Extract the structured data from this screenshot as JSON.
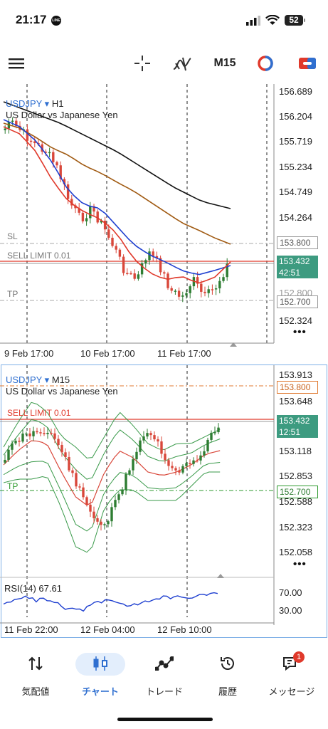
{
  "status": {
    "time": "21:17",
    "line_badge": "LINE",
    "battery": "52"
  },
  "toolbar": {
    "timeframe": "M15",
    "icons": [
      "menu-icon",
      "crosshair-icon",
      "indicator-icon",
      "timeframe-m15",
      "color-theme-icon",
      "trade-icon"
    ]
  },
  "h1_chart": {
    "symbol": "USDJPY",
    "timeframe": "H1",
    "description": "US Dollar vs Japanese Yen",
    "price_labels": [
      "156.689",
      "156.204",
      "155.719",
      "155.234",
      "154.749",
      "154.264",
      "153.800",
      "153.432",
      "42:51",
      "152.800",
      "152.700",
      "152.324"
    ],
    "levels": {
      "sl": "SL",
      "sell_limit": "SELL LIMIT 0.01",
      "tp": "TP"
    },
    "tags": {
      "sl": "153.800",
      "bid": "153.432",
      "countdown": "42:51",
      "tp": "152.700"
    },
    "time_labels": [
      "9 Feb 17:00",
      "10 Feb 17:00",
      "11 Feb 17:00"
    ]
  },
  "m15_chart": {
    "symbol": "USDJPY",
    "timeframe": "M15",
    "description": "US Dollar vs Japanese Yen",
    "price_labels": [
      "153.913",
      "153.800",
      "153.648",
      "153.432",
      "12:51",
      "153.118",
      "152.853",
      "152.700",
      "152.588",
      "152.323",
      "152.058"
    ],
    "levels": {
      "sell_limit": "SELL LIMIT 0.01",
      "tp": "TP"
    },
    "tags": {
      "sl": "153.800",
      "bid": "153.432",
      "countdown": "12:51",
      "tp": "152.700"
    },
    "rsi": {
      "label": "RSI(14) 67.61",
      "level_high": "70.00",
      "level_low": "30.00"
    },
    "time_labels": [
      "11 Feb 22:00",
      "12 Feb 04:00",
      "12 Feb 10:00"
    ]
  },
  "bottom_nav": {
    "items": [
      {
        "label": "気配値",
        "icon": "quotes-icon"
      },
      {
        "label": "チャート",
        "icon": "chart-icon",
        "active": true
      },
      {
        "label": "トレード",
        "icon": "trade-icon"
      },
      {
        "label": "履歴",
        "icon": "history-icon"
      },
      {
        "label": "メッセージ",
        "icon": "messages-icon",
        "badge": "1"
      }
    ]
  },
  "colors": {
    "accent": "#2f6fd0",
    "bull": "#2e7d32",
    "bear": "#d9473a",
    "ma_fast": "#1e3fd0",
    "ma_mid": "#e0392b",
    "ma_slow": "#a05a12",
    "bid_tag": "#3d9b80",
    "bb": "#3a9a4a"
  }
}
